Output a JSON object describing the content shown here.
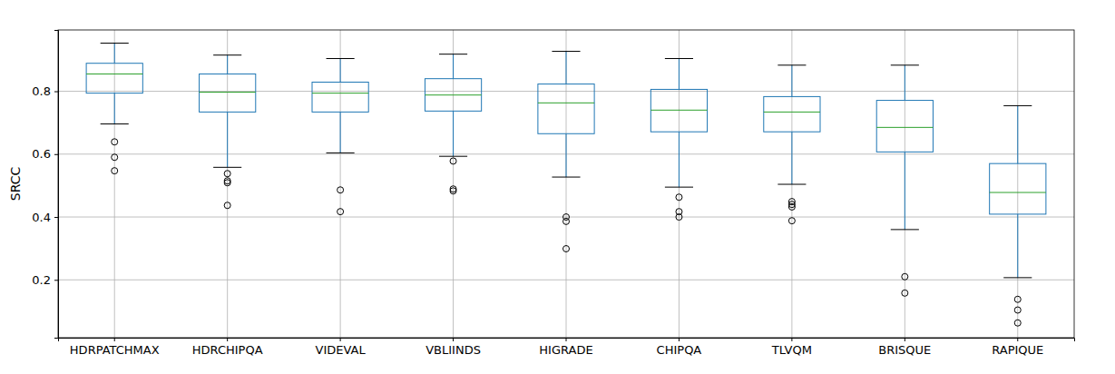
{
  "chart_data": {
    "type": "box",
    "y_label": "SRCC",
    "categories": [
      "HDRPATCHMAX",
      "HDRCHIPQA",
      "VIDEVAL",
      "VBLIINDS",
      "HIGRADE",
      "CHIPQA",
      "TLVQM",
      "BRISQUE",
      "RAPIQUE"
    ],
    "whisker_high": [
      0.953,
      0.915,
      0.904,
      0.918,
      0.927,
      0.904,
      0.883,
      0.883,
      0.754
    ],
    "q3": [
      0.889,
      0.855,
      0.829,
      0.84,
      0.823,
      0.806,
      0.783,
      0.771,
      0.57
    ],
    "median": [
      0.855,
      0.797,
      0.794,
      0.788,
      0.763,
      0.74,
      0.734,
      0.685,
      0.478
    ],
    "q1": [
      0.794,
      0.734,
      0.734,
      0.737,
      0.665,
      0.671,
      0.671,
      0.607,
      0.409
    ],
    "whisker_low": [
      0.696,
      0.558,
      0.604,
      0.593,
      0.527,
      0.495,
      0.504,
      0.36,
      0.207
    ],
    "outliers": [
      [
        0.639,
        0.59,
        0.547
      ],
      [
        0.538,
        0.515,
        0.509,
        0.437
      ],
      [
        0.486,
        0.417
      ],
      [
        0.578,
        0.489,
        0.483
      ],
      [
        0.4,
        0.386,
        0.299
      ],
      [
        0.463,
        0.417,
        0.4
      ],
      [
        0.449,
        0.44,
        0.432,
        0.388
      ],
      [
        0.21,
        0.158
      ],
      [
        0.138,
        0.104,
        0.063
      ]
    ],
    "color": "#1f77b4",
    "ylim": [
      0.016,
      0.995
    ],
    "yticks": [
      0.2,
      0.4,
      0.6,
      0.8
    ],
    "grid": true
  }
}
